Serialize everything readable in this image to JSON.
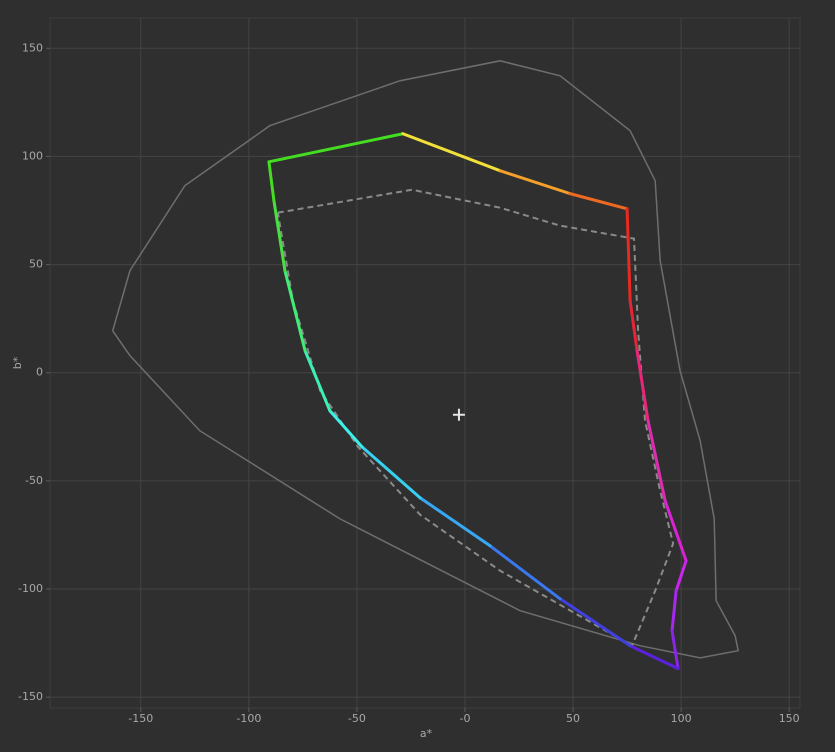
{
  "chart_data": {
    "type": "line",
    "xlabel": "a*",
    "ylabel": "b*",
    "xlim": [
      -192,
      155
    ],
    "ylim": [
      -155,
      164
    ],
    "xticks": [
      -150,
      -100,
      -50,
      {
        "value": 0,
        "label": "-0"
      },
      50,
      100,
      150
    ],
    "yticks": [
      -150,
      -100,
      -50,
      0,
      50,
      100,
      150
    ],
    "grid": true,
    "series": [
      {
        "color": "#6e6e6e",
        "dash": false,
        "x": [
          -163,
          -155,
          -129.6,
          -90.3,
          -30,
          16.2,
          44,
          76.4,
          88,
          90.3,
          99.5,
          108.8,
          115.3,
          116.2,
          125,
          126.4,
          108.8,
          81,
          25.5,
          -57.9,
          -122.7,
          -155,
          -163
        ],
        "values": [
          19.4,
          47.2,
          86.5,
          114.2,
          135,
          144.2,
          137.3,
          111.9,
          88.8,
          51.8,
          0.9,
          -31.4,
          -67.5,
          -105.4,
          -121.6,
          -128.5,
          -131.8,
          -126.2,
          -110,
          -67.5,
          -26.8,
          7.9,
          19.4
        ]
      },
      {
        "color": "#8a8a8a",
        "dash": true,
        "x": [
          -86.6,
          -24.5,
          16.2,
          44,
          78.2,
          80.1,
          83.3,
          90.3,
          96.3,
          88,
          77.3,
          16.2,
          -20.8,
          -49.5,
          -67,
          -79.6,
          -86.6
        ],
        "values": [
          74,
          84.6,
          76.3,
          68,
          62,
          19.4,
          -22.2,
          -54.6,
          -79,
          -100.8,
          -126.2,
          -91.5,
          -65.6,
          -34.2,
          -8.3,
          33.3,
          74
        ]
      },
      {
        "dash": false,
        "colors": [
          "#44dd22",
          "#f2e03a",
          "#f5a02a",
          "#ee6a22",
          "#e82a22",
          "#e52438",
          "#e8267a",
          "#e02ab0",
          "#da22d4",
          "#cc24ec",
          "#a828ee",
          "#8a24e6",
          "#5a22dc",
          "#4040e0",
          "#3a78f0",
          "#38a8f4",
          "#38d0f0",
          "#3af0e8",
          "#3cf0b4",
          "#40ec74",
          "#48e040",
          "#44dd22"
        ],
        "x": [
          -90.7,
          -28.7,
          16.2,
          48.6,
          75,
          76.4,
          79.6,
          84.7,
          92.6,
          102.3,
          97.7,
          95.8,
          98.6,
          76.4,
          44,
          11.6,
          -20.8,
          -47.7,
          -62.5,
          -74,
          -83.3,
          -88.4,
          -90.7
        ],
        "values": [
          97.5,
          110.5,
          93.4,
          82.8,
          75.8,
          33.3,
          10.2,
          -22.2,
          -59.2,
          -86.9,
          -100.8,
          -119.3,
          -136.8,
          -126.2,
          -104.5,
          -80,
          -57.8,
          -34.2,
          -17.6,
          10.2,
          47.2,
          79.5,
          97.5
        ]
      }
    ],
    "white_point": {
      "x": -2.8,
      "y": -19.4,
      "color": "#e6e6e6"
    }
  }
}
